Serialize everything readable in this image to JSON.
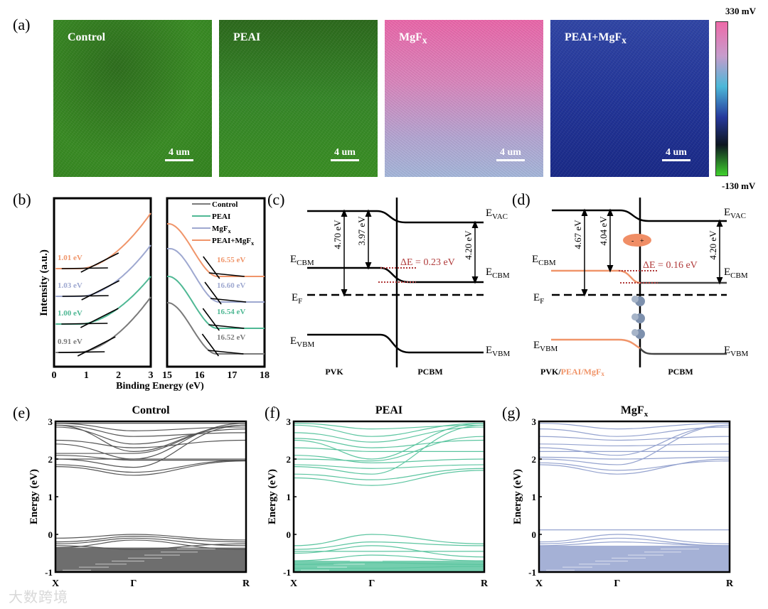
{
  "panel_a": {
    "label": "(a)",
    "maps": [
      {
        "name": "Control",
        "sub": "",
        "scale": "4 um"
      },
      {
        "name": "PEAI",
        "sub": "",
        "scale": "4 um"
      },
      {
        "name": "MgF",
        "sub": "x",
        "scale": "4 um"
      },
      {
        "name": "PEAI+MgF",
        "sub": "x",
        "scale": "4 um"
      }
    ],
    "colorbar_max": "330 mV",
    "colorbar_min": "-130 mV",
    "colors": {
      "pink": "#ee6aa8",
      "blue": "#26399c",
      "green": "#3fd12c"
    }
  },
  "labels": {
    "b": "(b)",
    "c": "(c)",
    "d": "(d)",
    "e": "(e)",
    "f": "(f)",
    "g": "(g)"
  },
  "chart_data": [
    {
      "type": "line",
      "id": "ups",
      "xlabel": "Binding Energy (eV)",
      "ylabel": "Intensity (a.u.)",
      "xlim_left": [
        0,
        3
      ],
      "xlim_right": [
        15,
        18
      ],
      "xticks_left": [
        "0",
        "1",
        "2",
        "3"
      ],
      "xticks_right": [
        "15",
        "16",
        "17",
        "18"
      ],
      "legend_position": "top-right",
      "series": [
        {
          "name": "Control",
          "sub": "",
          "color": "#7a7a7a",
          "onset_vbm": "0.91 eV",
          "cutoff": "16.52 eV",
          "onset_val": 0.91,
          "cutoff_val": 16.52
        },
        {
          "name": "PEAI",
          "sub": "",
          "color": "#4fb894",
          "onset_vbm": "1.00 eV",
          "cutoff": "16.54 eV",
          "onset_val": 1.0,
          "cutoff_val": 16.54
        },
        {
          "name": "MgF",
          "sub": "x",
          "color": "#9ea8d0",
          "onset_vbm": "1.03 eV",
          "cutoff": "16.60 eV",
          "onset_val": 1.03,
          "cutoff_val": 16.6
        },
        {
          "name": "PEAI+MgF",
          "sub": "x",
          "color": "#f0956a",
          "onset_vbm": "1.01 eV",
          "cutoff": "16.55 eV",
          "onset_val": 1.01,
          "cutoff_val": 16.55
        }
      ]
    },
    {
      "type": "band_structure",
      "id": "control",
      "title": "Control",
      "title_sub": "",
      "color": "#555555",
      "ylabel": "Energy (eV)",
      "ylim": [
        -1,
        3
      ],
      "yticks": [
        "3",
        "2",
        "1",
        "0",
        "-1"
      ],
      "kpoints": [
        "X",
        "Γ",
        "R"
      ],
      "bands": [
        [
          1.8,
          1.57,
          1.95
        ],
        [
          1.85,
          1.65,
          1.97
        ],
        [
          2.0,
          1.78,
          2.9
        ],
        [
          2.1,
          1.97,
          1.97
        ],
        [
          2.15,
          2.15,
          2.9
        ],
        [
          2.5,
          2.3,
          2.5
        ],
        [
          2.9,
          2.6,
          2.7
        ],
        [
          2.95,
          2.75,
          2.85
        ],
        [
          2.4,
          2.0,
          2.95
        ],
        [
          2.9,
          2.2,
          2.9
        ],
        [
          2.0,
          2.0,
          2.0
        ],
        [
          2.95,
          2.95,
          2.95
        ],
        [
          2.85,
          2.4,
          2.8
        ],
        [
          -0.1,
          0,
          -0.15
        ],
        [
          -0.2,
          -0.05,
          -0.2
        ],
        [
          -0.25,
          -0.1,
          -0.3
        ],
        [
          -0.3,
          -0.4,
          -0.25
        ],
        [
          -0.35,
          -0.15,
          -0.4
        ]
      ],
      "dense_valence": [
        -1,
        -0.35
      ]
    },
    {
      "type": "band_structure",
      "id": "peai",
      "title": "PEAI",
      "title_sub": "",
      "color": "#5cc5a0",
      "ylabel": "Energy (eV)",
      "ylim": [
        -1,
        3
      ],
      "yticks": [
        "3",
        "2",
        "1",
        "0",
        "-1"
      ],
      "kpoints": [
        "X",
        "Γ",
        "R"
      ],
      "bands": [
        [
          1.5,
          1.3,
          1.7
        ],
        [
          1.6,
          1.45,
          1.75
        ],
        [
          1.8,
          1.6,
          2.9
        ],
        [
          1.85,
          1.75,
          1.85
        ],
        [
          2.0,
          1.95,
          2.6
        ],
        [
          2.5,
          2.0,
          2.95
        ],
        [
          2.55,
          2.3,
          2.5
        ],
        [
          2.7,
          2.45,
          2.85
        ],
        [
          2.9,
          2.6,
          2.95
        ],
        [
          2.95,
          2.8,
          2.9
        ],
        [
          2.3,
          2.2,
          2.2
        ],
        [
          2.1,
          1.9,
          2.0
        ],
        [
          -0.3,
          0,
          -0.25
        ],
        [
          -0.4,
          -0.2,
          -0.3
        ],
        [
          -0.45,
          -0.45,
          -0.45
        ],
        [
          -0.5,
          -0.3,
          -0.6
        ],
        [
          -0.7,
          -0.55,
          -0.7
        ],
        [
          -0.8,
          -0.75,
          -0.8
        ],
        [
          -0.9,
          -0.9,
          -0.85
        ]
      ],
      "dense_valence": [
        -1,
        -0.7
      ]
    },
    {
      "type": "band_structure",
      "id": "mgfx",
      "title": "MgF",
      "title_sub": "x",
      "color": "#95a3cf",
      "ylabel": "Energy (eV)",
      "ylim": [
        -1,
        3
      ],
      "yticks": [
        "3",
        "2",
        "1",
        "0",
        "-1"
      ],
      "kpoints": [
        "X",
        "Γ",
        "R"
      ],
      "bands": [
        [
          1.85,
          1.6,
          2.0
        ],
        [
          1.9,
          1.7,
          1.95
        ],
        [
          2.0,
          1.85,
          2.9
        ],
        [
          2.2,
          2.2,
          2.2
        ],
        [
          2.3,
          2.1,
          2.9
        ],
        [
          2.4,
          2.35,
          2.4
        ],
        [
          2.6,
          2.5,
          2.6
        ],
        [
          2.8,
          2.6,
          2.85
        ],
        [
          2.95,
          2.8,
          2.95
        ],
        [
          2.05,
          2.0,
          2.05
        ],
        [
          0.12,
          0.12,
          0.12
        ],
        [
          -0.2,
          0,
          -0.25
        ],
        [
          -0.25,
          -0.1,
          -0.3
        ],
        [
          -0.3,
          -0.2,
          -0.3
        ]
      ],
      "dense_valence": [
        -1,
        -0.3
      ]
    }
  ],
  "diagram_c": {
    "evac": {
      "main": "E",
      "sub": "VAC"
    },
    "ecbm": {
      "main": "E",
      "sub": "CBM"
    },
    "ef": {
      "main": "E",
      "sub": "F"
    },
    "evbm": {
      "main": "E",
      "sub": "VBM"
    },
    "gap1": "4.70 eV",
    "gap2": "3.97 eV",
    "gap3": "4.20 eV",
    "delta": "ΔE = 0.23 eV",
    "left": "PVK",
    "right": "PCBM"
  },
  "diagram_d": {
    "evac": {
      "main": "E",
      "sub": "VAC"
    },
    "ecbm": {
      "main": "E",
      "sub": "CBM"
    },
    "ef": {
      "main": "E",
      "sub": "F"
    },
    "evbm": {
      "main": "E",
      "sub": "VBM"
    },
    "gap1": "4.67 eV",
    "gap2": "4.04 eV",
    "gap3": "4.20 eV",
    "delta": "ΔE = 0.16 eV",
    "left_a": "PVK/",
    "left_b": "PEAI/MgF",
    "left_b_sub": "x",
    "right": "PCBM",
    "exciton_minus": "-",
    "exciton_plus": "+"
  },
  "watermark": "大数跨境"
}
